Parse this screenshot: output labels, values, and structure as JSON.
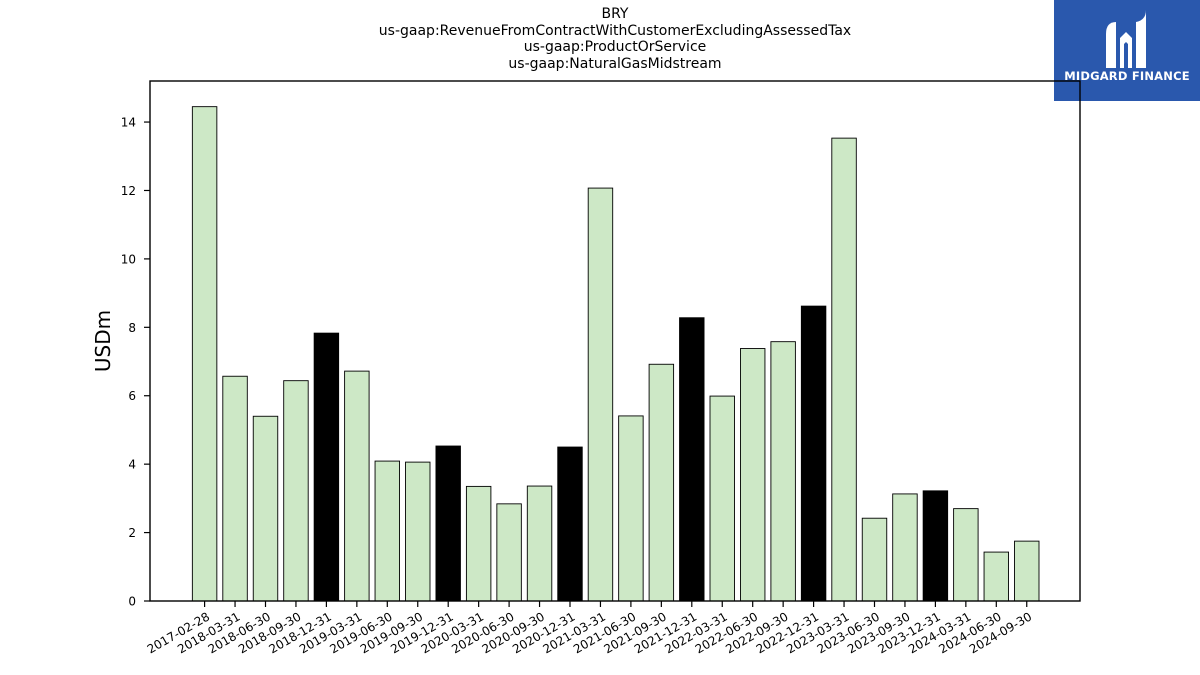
{
  "chart_data": {
    "type": "bar",
    "title_lines": [
      "BRY",
      "us-gaap:RevenueFromContractWithCustomerExcludingAssessedTax",
      "us-gaap:ProductOrService",
      "us-gaap:NaturalGasMidstream"
    ],
    "ylabel": "USDm",
    "xlabel": "",
    "ylim": [
      0,
      15.2
    ],
    "yticks": [
      0,
      2,
      4,
      6,
      8,
      10,
      12,
      14
    ],
    "categories": [
      "2017-02-28",
      "2018-03-31",
      "2018-06-30",
      "2018-09-30",
      "2018-12-31",
      "2019-03-31",
      "2019-06-30",
      "2019-09-30",
      "2019-12-31",
      "2020-03-31",
      "2020-06-30",
      "2020-09-30",
      "2020-12-31",
      "2021-03-31",
      "2021-06-30",
      "2021-09-30",
      "2021-12-31",
      "2022-03-31",
      "2022-06-30",
      "2022-09-30",
      "2022-12-31",
      "2023-03-31",
      "2023-06-30",
      "2023-09-30",
      "2023-12-31",
      "2024-03-31",
      "2024-06-30",
      "2024-09-30"
    ],
    "values": [
      14.45,
      6.57,
      5.4,
      6.44,
      7.83,
      6.72,
      4.09,
      4.06,
      4.53,
      3.35,
      2.84,
      3.36,
      4.5,
      12.07,
      5.41,
      6.92,
      8.28,
      5.99,
      7.38,
      7.58,
      8.62,
      13.53,
      2.42,
      3.13,
      3.22,
      2.7,
      1.43,
      1.75
    ],
    "highlight": [
      false,
      false,
      false,
      false,
      true,
      false,
      false,
      false,
      true,
      false,
      false,
      false,
      true,
      false,
      false,
      false,
      true,
      false,
      false,
      false,
      true,
      false,
      false,
      false,
      true,
      false,
      false,
      false
    ],
    "colors": {
      "bar": "#cde8c6",
      "highlight": "#000000",
      "edge": "#000000"
    },
    "grid": false,
    "legend": "none"
  },
  "logo": {
    "text": "MIDGARD FINANCE",
    "background": "#2a58ad"
  }
}
